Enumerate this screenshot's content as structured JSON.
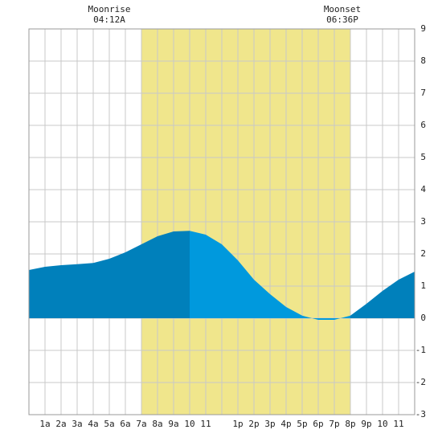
{
  "chart_data": {
    "type": "area",
    "annotations": [
      {
        "label": "Moonrise",
        "time": "04:12A"
      },
      {
        "label": "Moonset",
        "time": "06:36P"
      }
    ],
    "shade": {
      "x": [
        7,
        20
      ],
      "color": "#f0e68c"
    },
    "categories": [
      "1a",
      "2a",
      "3a",
      "4a",
      "5a",
      "6a",
      "7a",
      "8a",
      "9a",
      "10",
      "11",
      null,
      "1p",
      "2p",
      "3p",
      "4p",
      "5p",
      "6p",
      "7p",
      "8p",
      "9p",
      "10",
      "11"
    ],
    "x": [
      0,
      1,
      2,
      3,
      4,
      5,
      6,
      7,
      8,
      9,
      10,
      11,
      12,
      13,
      14,
      15,
      16,
      17,
      18,
      19,
      20,
      21,
      22,
      23,
      24
    ],
    "series": [
      {
        "color": "#0080bb",
        "values": [
          1.5,
          1.6,
          1.65,
          1.68,
          1.72,
          1.85,
          2.05,
          2.3,
          2.55,
          2.7,
          2.72,
          null,
          null,
          null,
          null,
          null,
          null,
          null,
          null,
          null,
          null,
          null,
          null,
          null,
          null
        ]
      },
      {
        "color": "#0099dd",
        "values": [
          null,
          null,
          null,
          null,
          null,
          null,
          null,
          null,
          null,
          null,
          2.72,
          2.6,
          2.3,
          1.8,
          1.2,
          0.75,
          0.35,
          0.08,
          -0.05,
          -0.05,
          0.08,
          null,
          null,
          null,
          null
        ]
      },
      {
        "color": "#0080bb",
        "values": [
          null,
          null,
          null,
          null,
          null,
          null,
          null,
          null,
          null,
          null,
          null,
          null,
          null,
          null,
          null,
          null,
          null,
          null,
          null,
          null,
          0.08,
          0.45,
          0.85,
          1.2,
          1.45
        ]
      }
    ],
    "xlim": [
      0,
      24
    ],
    "ylim": [
      -3,
      9
    ],
    "yticks": [
      -3,
      -2,
      -1,
      0,
      1,
      2,
      3,
      4,
      5,
      6,
      7,
      8,
      9
    ],
    "grid": true
  }
}
